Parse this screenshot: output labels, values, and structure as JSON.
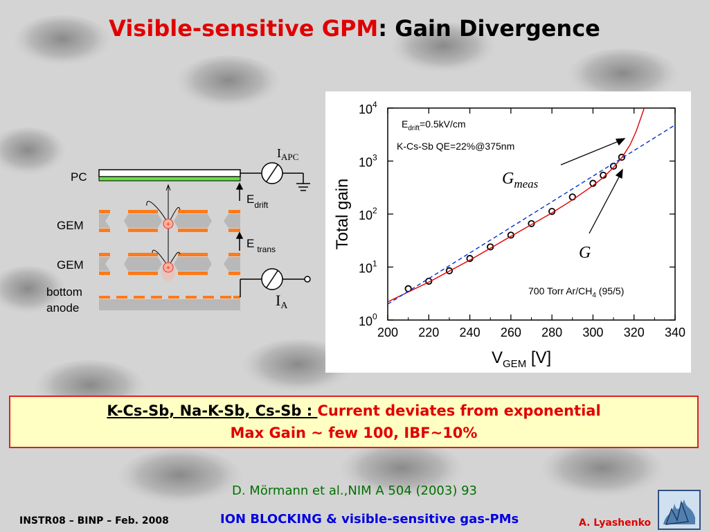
{
  "slide": {
    "title_part1": "Visible-sensitive GPM",
    "title_part2": ": Gain Divergence",
    "box_line1_underlined": "K-Cs-Sb, Na-K-Sb, Cs-Sb : ",
    "box_line1_red": "Current deviates from exponential",
    "box_line2": "Max Gain ~ few 100, IBF~10%",
    "reference": "D. Mörmann et al.,NIM A 504 (2003) 93",
    "footer_left": "INSTR08 – BINP – Feb. 2008",
    "footer_center": "ION BLOCKING & visible-sensitive gas-PMs",
    "footer_right": "A. Lyashenko",
    "colors": {
      "title_red": "#e00000",
      "box_bg": "#ffffc4",
      "reference_green": "#007000",
      "footer_blue": "#0000e0"
    }
  },
  "diagram": {
    "labels": {
      "pc": "PC",
      "gem1": "GEM",
      "gem2": "GEM",
      "bottom": "bottom",
      "anode": "anode",
      "i_apc": "I",
      "i_apc_sub": "APC",
      "e_drift": "E",
      "e_drift_sub": "drift",
      "e_trans": "E",
      "e_trans_sub": "trans",
      "i_a": "I",
      "i_a_sub": "A",
      "plus": "+"
    },
    "colors": {
      "photocathode": "#66dd44",
      "electrode": "#ff7a1a",
      "insulator": "#b8b8b8"
    }
  },
  "chart_data": {
    "type": "scatter",
    "xlabel": "V",
    "xlabel_sub": "GEM",
    "xlabel_unit": " [V]",
    "ylabel": "Total gain",
    "xlim": [
      200,
      340
    ],
    "ylim_log10": [
      0,
      4
    ],
    "y_scale": "log",
    "x_ticks": [
      "200",
      "220",
      "240",
      "260",
      "280",
      "300",
      "320",
      "340"
    ],
    "y_tick_base": "10",
    "y_tick_exps": [
      "0",
      "1",
      "2",
      "3",
      "4"
    ],
    "annotations": {
      "edrift_a": "E",
      "edrift_b": "drift",
      "edrift_c": "=0.5kV/cm",
      "qe": "K-Cs-Sb QE=22%@375nm",
      "gas_a": "700 Torr Ar/CH",
      "gas_b": "4",
      "gas_c": " (95/5)",
      "gmeas_a": "G",
      "gmeas_b": "meas",
      "g": "G"
    },
    "series": [
      {
        "type": "points",
        "color": "#000000",
        "x": [
          210,
          220,
          230,
          240,
          250,
          260,
          270,
          280,
          290,
          300,
          305,
          310,
          314
        ],
        "y": [
          3.9,
          5.4,
          8.5,
          14.5,
          24,
          40,
          66,
          112,
          210,
          380,
          540,
          800,
          1180
        ]
      },
      {
        "type": "line",
        "style": "solid",
        "color": "#e00000",
        "x": [
          200,
          220,
          240,
          260,
          280,
          290,
          300,
          305,
          310,
          314,
          318,
          321,
          323,
          325
        ],
        "y": [
          2.2,
          5.2,
          13.5,
          38,
          105,
          185,
          345,
          490,
          760,
          1150,
          2000,
          3600,
          6000,
          10000
        ]
      },
      {
        "type": "line",
        "style": "dashed",
        "color": "#0030d0",
        "x": [
          200,
          340
        ],
        "y": [
          2.0,
          4800
        ]
      }
    ]
  }
}
